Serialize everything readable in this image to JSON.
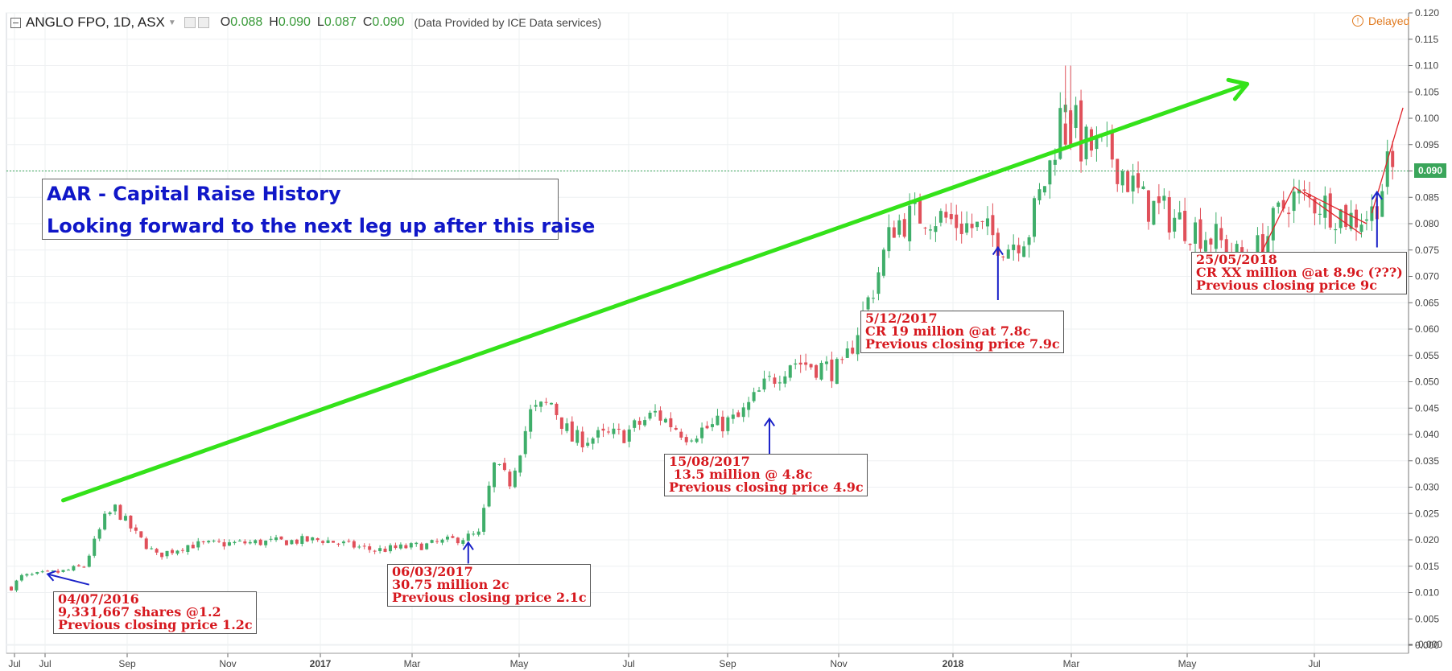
{
  "header": {
    "symbol": "ANGLO FPO, 1D, ASX",
    "o_label": "O",
    "o_value": "0.088",
    "h_label": "H",
    "h_value": "0.090",
    "l_label": "L",
    "l_value": "0.087",
    "c_label": "C",
    "c_value": "0.090",
    "provider": "(Data Provided by ICE Data services)",
    "delayed": "Delayed"
  },
  "last_price": "0.090",
  "title_box": {
    "line1": "AAR - Capital Raise History",
    "line2": "Looking forward to the next leg up after this raise"
  },
  "notes": [
    {
      "lines": "04/07/2016\n9,331,667 shares @1.2\nPrevious closing price 1.2c"
    },
    {
      "lines": "06/03/2017\n30.75 million 2c\nPrevious closing price 2.1c"
    },
    {
      "lines": "15/08/2017\n 13.5 million @ 4.8c\nPrevious closing price 4.9c"
    },
    {
      "lines": "5/12/2017\nCR 19 million @at 7.8c\nPrevious closing price 7.9c"
    },
    {
      "lines": "25/05/2018\nCR XX million @at 8.9c (???)\nPrevious closing price 9c"
    }
  ],
  "colors": {
    "up": "#3fae6a",
    "down": "#e0505a",
    "trend": "#34e21a",
    "annotation": "#d6181e",
    "arrow": "#1a22c8",
    "title": "#1017c8"
  },
  "chart_data": {
    "type": "candlestick",
    "title": "ANGLO FPO, 1D, ASX",
    "x_ticks": [
      "Jul",
      "Jul",
      "Sep",
      "Nov",
      "2017",
      "Mar",
      "May",
      "Jul",
      "Sep",
      "Nov",
      "2018",
      "Mar",
      "May",
      "Jul"
    ],
    "y_ticks": [
      "0.120",
      "0.115",
      "0.110",
      "0.105",
      "0.100",
      "0.095",
      "0.090",
      "0.085",
      "0.080",
      "0.075",
      "0.070",
      "0.065",
      "0.060",
      "0.055",
      "0.050",
      "0.045",
      "0.040",
      "0.035",
      "0.030",
      "0.025",
      "0.020",
      "0.015",
      "0.010",
      "0.005",
      "0.000",
      "-0.000"
    ],
    "ylim": [
      -0.0005,
      0.1205
    ],
    "grid": true,
    "price_segments": [
      {
        "t": 0,
        "p": 0.011
      },
      {
        "t": 2,
        "p": 0.013
      },
      {
        "t": 10,
        "p": 0.014
      },
      {
        "t": 14,
        "p": 0.015
      },
      {
        "t": 18,
        "p": 0.024
      },
      {
        "t": 20,
        "p": 0.026
      },
      {
        "t": 24,
        "p": 0.021
      },
      {
        "t": 28,
        "p": 0.017
      },
      {
        "t": 34,
        "p": 0.019
      },
      {
        "t": 60,
        "p": 0.02
      },
      {
        "t": 70,
        "p": 0.018
      },
      {
        "t": 80,
        "p": 0.019
      },
      {
        "t": 90,
        "p": 0.021
      },
      {
        "t": 93,
        "p": 0.034
      },
      {
        "t": 96,
        "p": 0.031
      },
      {
        "t": 100,
        "p": 0.044
      },
      {
        "t": 104,
        "p": 0.046
      },
      {
        "t": 108,
        "p": 0.039
      },
      {
        "t": 118,
        "p": 0.04
      },
      {
        "t": 124,
        "p": 0.044
      },
      {
        "t": 130,
        "p": 0.04
      },
      {
        "t": 140,
        "p": 0.043
      },
      {
        "t": 145,
        "p": 0.049
      },
      {
        "t": 150,
        "p": 0.054
      },
      {
        "t": 160,
        "p": 0.052
      },
      {
        "t": 166,
        "p": 0.068
      },
      {
        "t": 170,
        "p": 0.08
      },
      {
        "t": 176,
        "p": 0.082
      },
      {
        "t": 186,
        "p": 0.079
      },
      {
        "t": 192,
        "p": 0.076
      },
      {
        "t": 196,
        "p": 0.079
      },
      {
        "t": 200,
        "p": 0.091
      },
      {
        "t": 203,
        "p": 0.105
      },
      {
        "t": 206,
        "p": 0.095
      },
      {
        "t": 212,
        "p": 0.093
      },
      {
        "t": 218,
        "p": 0.084
      },
      {
        "t": 226,
        "p": 0.08
      },
      {
        "t": 232,
        "p": 0.077
      },
      {
        "t": 238,
        "p": 0.072
      },
      {
        "t": 242,
        "p": 0.078
      },
      {
        "t": 246,
        "p": 0.085
      },
      {
        "t": 252,
        "p": 0.084
      },
      {
        "t": 258,
        "p": 0.081
      },
      {
        "t": 262,
        "p": 0.082
      },
      {
        "t": 265,
        "p": 0.09
      }
    ],
    "trend_line": [
      {
        "t": 10,
        "p": 0.0275
      },
      {
        "t": 238,
        "p": 0.1065
      }
    ],
    "red_lines": [
      {
        "from": {
          "t": 237,
          "p": 0.067
        },
        "to": {
          "t": 247,
          "p": 0.087
        }
      },
      {
        "from": {
          "t": 247,
          "p": 0.087
        },
        "to": {
          "t": 260,
          "p": 0.078
        }
      },
      {
        "from": {
          "t": 249,
          "p": 0.086
        },
        "to": {
          "t": 261,
          "p": 0.08
        }
      },
      {
        "from": {
          "t": 262,
          "p": 0.082
        },
        "to": {
          "t": 268,
          "p": 0.102
        }
      }
    ],
    "arrows": [
      {
        "from": {
          "t": 15,
          "p": 0.0115
        },
        "to": {
          "t": 7,
          "p": 0.0135
        }
      },
      {
        "from": {
          "t": 88,
          "p": 0.0155
        },
        "to": {
          "t": 88,
          "p": 0.0195
        }
      },
      {
        "from": {
          "t": 146,
          "p": 0.035
        },
        "to": {
          "t": 146,
          "p": 0.043
        }
      },
      {
        "from": {
          "t": 190,
          "p": 0.0655
        },
        "to": {
          "t": 190,
          "p": 0.0755
        }
      },
      {
        "from": {
          "t": 263,
          "p": 0.0755
        },
        "to": {
          "t": 263,
          "p": 0.086
        }
      }
    ],
    "price_line": 0.09
  }
}
